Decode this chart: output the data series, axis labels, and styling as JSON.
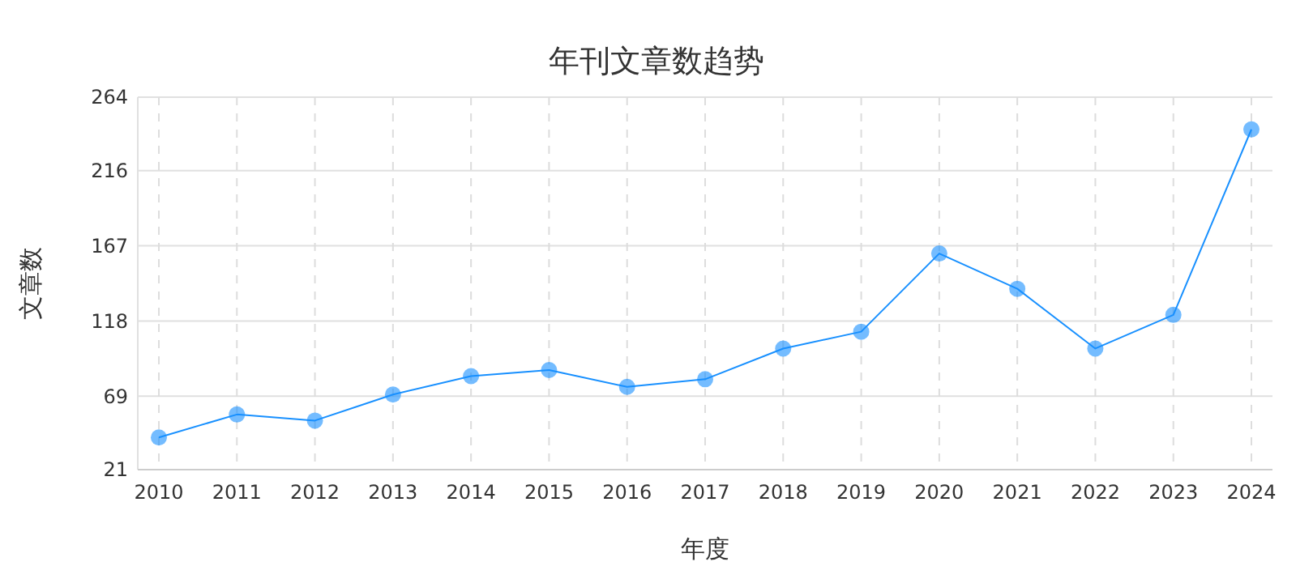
{
  "chart_data": {
    "type": "line",
    "title": "年刊文章数趋势",
    "xlabel": "年度",
    "ylabel": "文章数",
    "categories": [
      "2010",
      "2011",
      "2012",
      "2013",
      "2014",
      "2015",
      "2016",
      "2017",
      "2018",
      "2019",
      "2020",
      "2021",
      "2022",
      "2023",
      "2024"
    ],
    "series": [
      {
        "color": "#1890ff",
        "values": [
          42,
          57,
          53,
          70,
          82,
          86,
          75,
          80,
          100,
          111,
          162,
          139,
          100,
          122,
          243
        ]
      }
    ],
    "ylim": [
      21,
      264
    ],
    "yticks": [
      21,
      69,
      118,
      167,
      216,
      264
    ],
    "grid": true,
    "marker": "circle",
    "line_style": "solid"
  }
}
